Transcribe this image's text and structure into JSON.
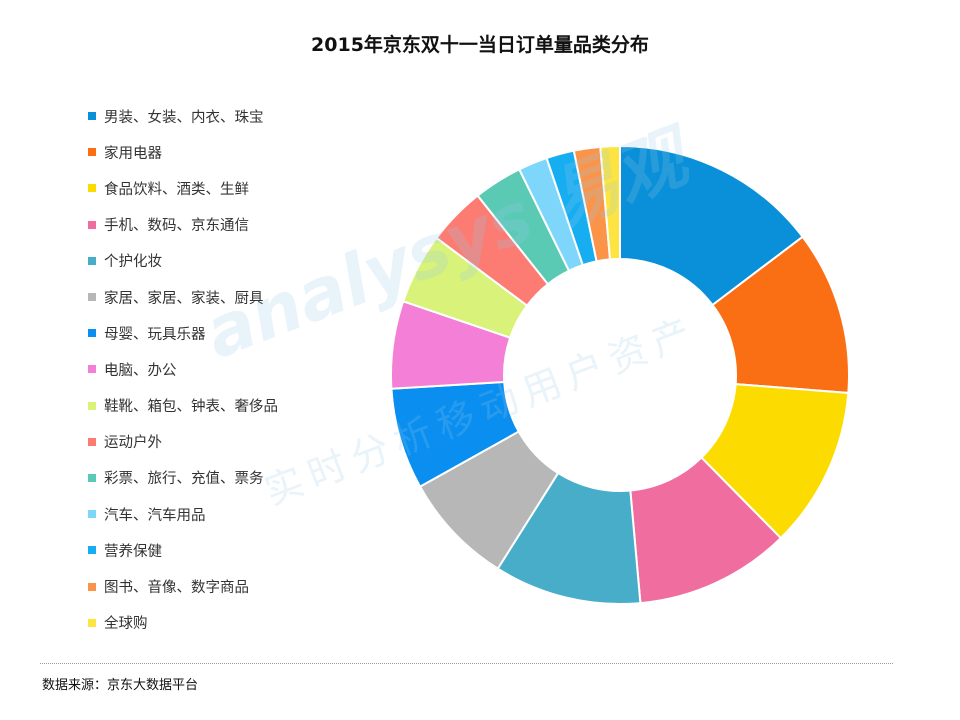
{
  "watermark": {
    "main": "analysys 易观",
    "sub": "实时分析移动用户资产"
  },
  "source": "数据来源：京东大数据平台",
  "chart_data": {
    "type": "pie",
    "subtype": "donut",
    "title": "2015年京东双十一当日订单量品类分布",
    "legend_position": "left",
    "categories": [
      "男装、女装、内衣、珠宝",
      "家用电器",
      "食品饮料、酒类、生鲜",
      "手机、数码、京东通信",
      "个护化妆",
      "家居、家居、家装、厨具",
      "母婴、玩具乐器",
      "电脑、办公",
      "鞋靴、箱包、钟表、奢侈品",
      "运动户外",
      "彩票、旅行、充值、票务",
      "汽车、汽车用品",
      "营养保健",
      "图书、音像、数字商品",
      "全球购"
    ],
    "values": [
      15.0,
      11.8,
      11.6,
      11.2,
      10.6,
      8.1,
      7.3,
      6.3,
      5.1,
      4.2,
      3.5,
      2.1,
      2.0,
      1.9,
      1.4
    ],
    "colors": [
      "#0a90d8",
      "#fb6f14",
      "#fcdc00",
      "#ef6e9f",
      "#48adc8",
      "#b7b7b7",
      "#0a8ff0",
      "#f47fd6",
      "#d8f27a",
      "#fc7c73",
      "#5bcab5",
      "#7fd6fb",
      "#16aef1",
      "#fb9448",
      "#fde441"
    ]
  }
}
